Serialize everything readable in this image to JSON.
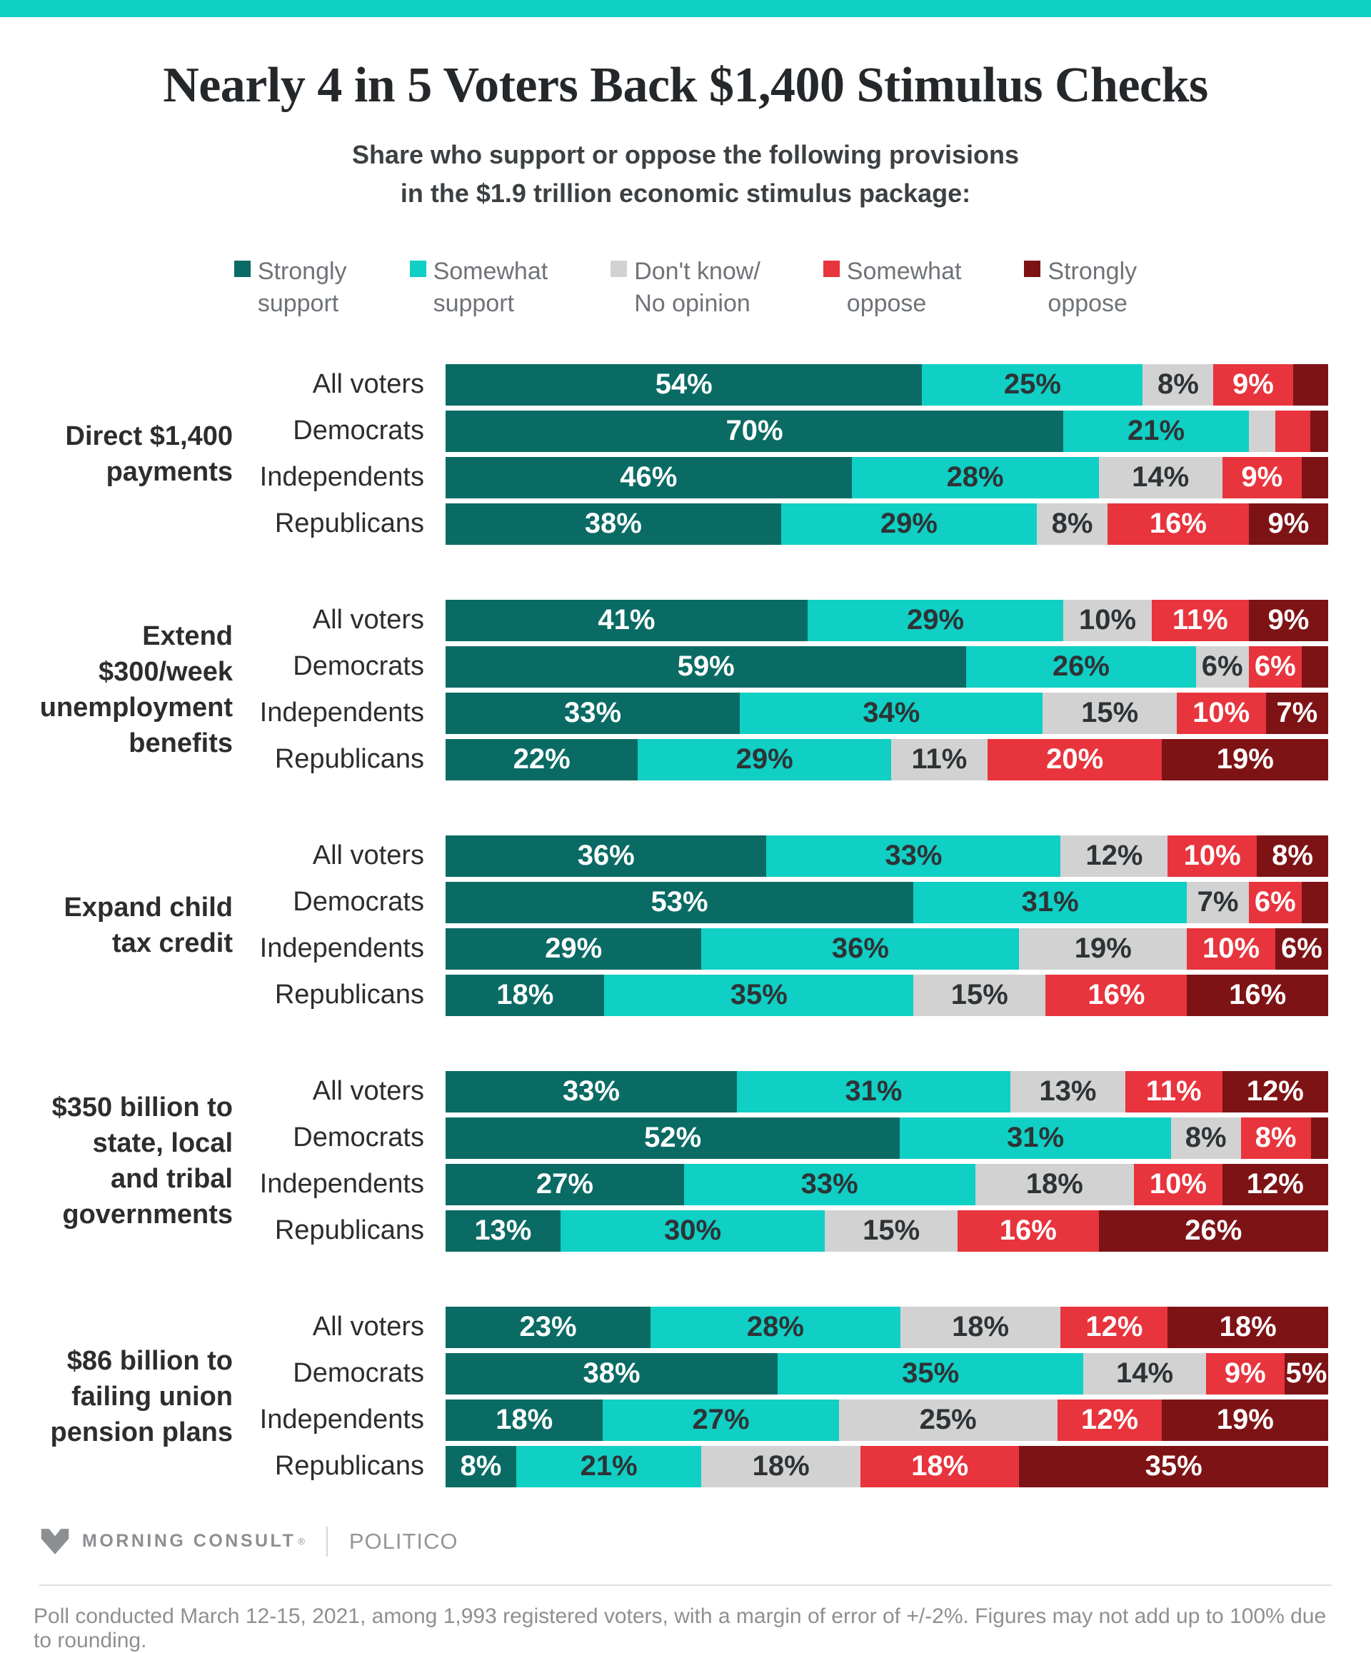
{
  "accent_color": "#10cfc4",
  "title": "Nearly 4 in 5 Voters Back $1,400 Stimulus Checks",
  "subtitle_line1": "Share who support or oppose the following provisions",
  "subtitle_line2": "in the $1.9 trillion economic stimulus package:",
  "legend": [
    {
      "text": "Strongly\nsupport",
      "color": "#0a6b64"
    },
    {
      "text": "Somewhat\nsupport",
      "color": "#10cfc4"
    },
    {
      "text": "Don't know/\nNo opinion",
      "color": "#d2d2d2"
    },
    {
      "text": "Somewhat\noppose",
      "color": "#e8343d"
    },
    {
      "text": "Strongly\noppose",
      "color": "#7e1316"
    }
  ],
  "chart_data": {
    "type": "bar",
    "stacked": true,
    "orientation": "horizontal",
    "unit": "%",
    "label_min_value": 5,
    "categories": [
      "Strongly support",
      "Somewhat support",
      "Don't know/No opinion",
      "Somewhat oppose",
      "Strongly oppose"
    ],
    "colors": [
      "#0a6b64",
      "#10cfc4",
      "#d2d2d2",
      "#e8343d",
      "#7e1316"
    ],
    "light_segment_indexes": [
      1,
      2
    ],
    "groups": [
      {
        "label": "Direct $1,400\npayments",
        "rows": [
          {
            "name": "All voters",
            "values": [
              54,
              25,
              8,
              9,
              4
            ]
          },
          {
            "name": "Democrats",
            "values": [
              70,
              21,
              3,
              4,
              2
            ]
          },
          {
            "name": "Independents",
            "values": [
              46,
              28,
              14,
              9,
              3
            ]
          },
          {
            "name": "Republicans",
            "values": [
              38,
              29,
              8,
              16,
              9
            ]
          }
        ]
      },
      {
        "label": "Extend\n$300/week\nunemployment\nbenefits",
        "rows": [
          {
            "name": "All voters",
            "values": [
              41,
              29,
              10,
              11,
              9
            ]
          },
          {
            "name": "Democrats",
            "values": [
              59,
              26,
              6,
              6,
              3
            ]
          },
          {
            "name": "Independents",
            "values": [
              33,
              34,
              15,
              10,
              7
            ]
          },
          {
            "name": "Republicans",
            "values": [
              22,
              29,
              11,
              20,
              19
            ]
          }
        ]
      },
      {
        "label": "Expand child\ntax credit",
        "rows": [
          {
            "name": "All voters",
            "values": [
              36,
              33,
              12,
              10,
              8
            ]
          },
          {
            "name": "Democrats",
            "values": [
              53,
              31,
              7,
              6,
              3
            ]
          },
          {
            "name": "Independents",
            "values": [
              29,
              36,
              19,
              10,
              6
            ]
          },
          {
            "name": "Republicans",
            "values": [
              18,
              35,
              15,
              16,
              16
            ]
          }
        ]
      },
      {
        "label": "$350 billion to\nstate, local\nand tribal\ngovernments",
        "rows": [
          {
            "name": "All voters",
            "values": [
              33,
              31,
              13,
              11,
              12
            ]
          },
          {
            "name": "Democrats",
            "values": [
              52,
              31,
              8,
              8,
              2
            ]
          },
          {
            "name": "Independents",
            "values": [
              27,
              33,
              18,
              10,
              12
            ]
          },
          {
            "name": "Republicans",
            "values": [
              13,
              30,
              15,
              16,
              26
            ]
          }
        ]
      },
      {
        "label": "$86 billion to\nfailing union\npension plans",
        "rows": [
          {
            "name": "All voters",
            "values": [
              23,
              28,
              18,
              12,
              18
            ]
          },
          {
            "name": "Democrats",
            "values": [
              38,
              35,
              14,
              9,
              5
            ]
          },
          {
            "name": "Independents",
            "values": [
              18,
              27,
              25,
              12,
              19
            ]
          },
          {
            "name": "Republicans",
            "values": [
              8,
              21,
              18,
              18,
              35
            ]
          }
        ]
      }
    ]
  },
  "footer": {
    "brand1": "MORNING CONSULT",
    "brand1_mark": "®",
    "brand2": "POLITICO",
    "note": "Poll conducted March 12-15, 2021, among 1,993 registered voters, with a margin of error of +/-2%. Figures may not add up to 100% due to rounding."
  }
}
